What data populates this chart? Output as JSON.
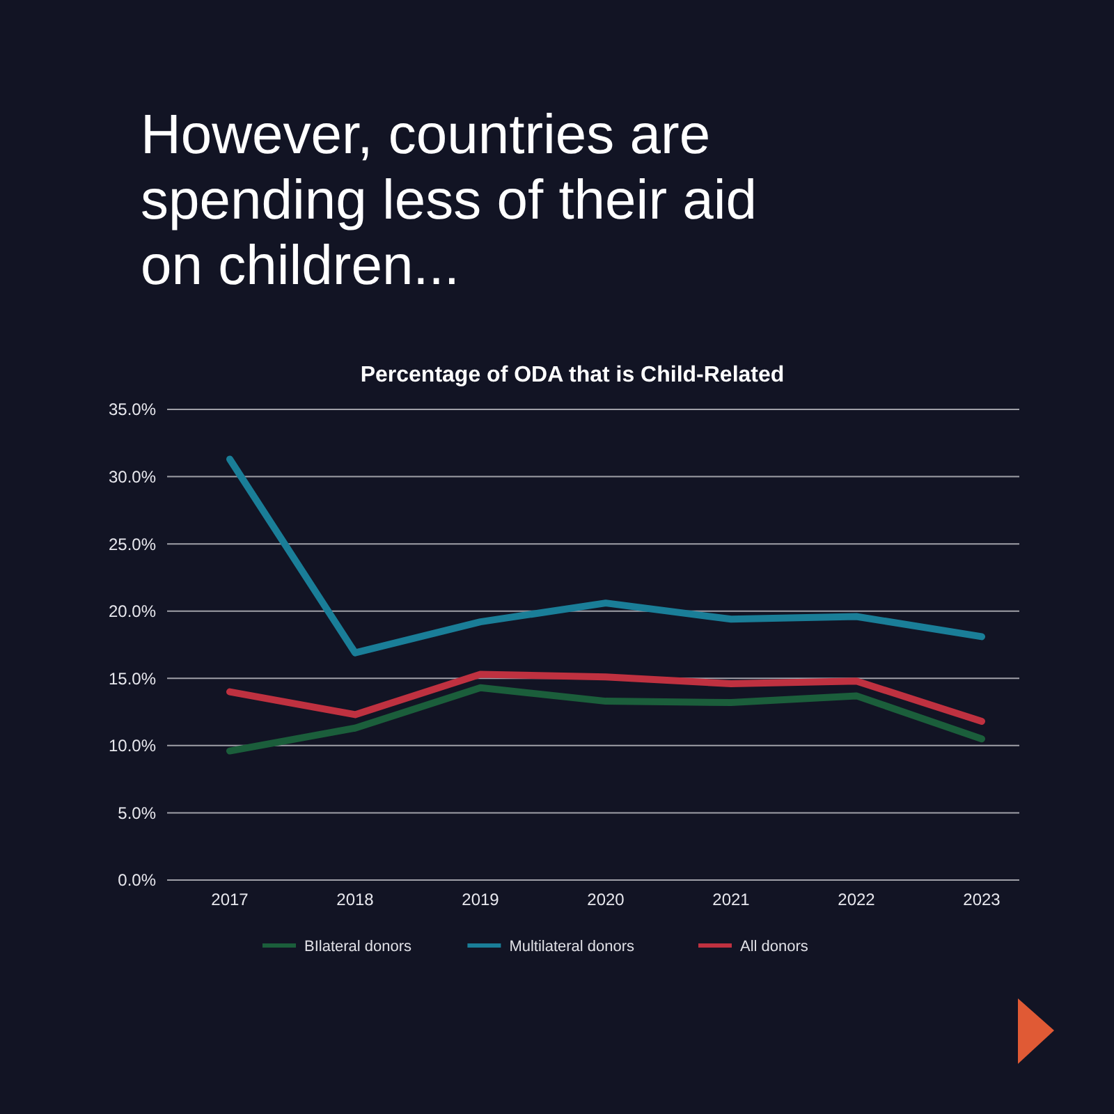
{
  "chart_data": {
    "type": "line",
    "title": "However, countries are spending less of their aid on children...",
    "subtitle": "Percentage of ODA that is Child-Related",
    "categories": [
      "2017",
      "2018",
      "2019",
      "2020",
      "2021",
      "2022",
      "2023"
    ],
    "series": [
      {
        "name": "BIlateral donors",
        "color": "#1b5e3b",
        "values": [
          9.6,
          11.3,
          14.3,
          13.3,
          13.2,
          13.7,
          10.5
        ]
      },
      {
        "name": "Multilateral donors",
        "color": "#1a7e98",
        "values": [
          31.3,
          16.9,
          19.2,
          20.6,
          19.4,
          19.6,
          18.1
        ]
      },
      {
        "name": "All donors",
        "color": "#bf3140",
        "values": [
          14.0,
          12.3,
          15.3,
          15.1,
          14.6,
          14.8,
          11.8
        ]
      }
    ],
    "ylim": [
      0,
      35
    ],
    "yticks": [
      {
        "value": 0,
        "label": "0.0%"
      },
      {
        "value": 5,
        "label": "5.0%"
      },
      {
        "value": 10,
        "label": "10.0%"
      },
      {
        "value": 15,
        "label": "15.0%"
      },
      {
        "value": 20,
        "label": "20.0%"
      },
      {
        "value": 25,
        "label": "25.0%"
      },
      {
        "value": 30,
        "label": "30.0%"
      },
      {
        "value": 35,
        "label": "35.0%"
      }
    ],
    "grid": "y",
    "legend": "bottom",
    "marker": "none",
    "line_style": "solid"
  }
}
